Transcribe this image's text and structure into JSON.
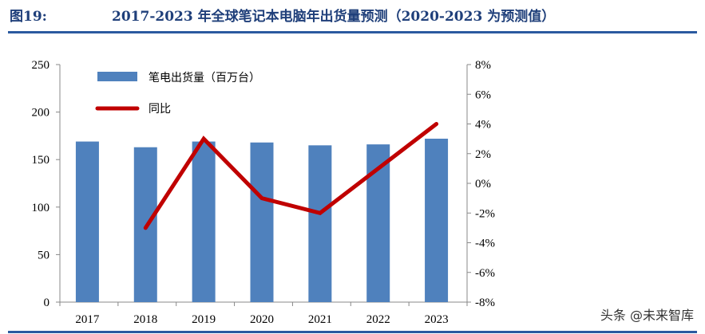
{
  "header": {
    "figure_label": "图19:",
    "title": "2017-2023 年全球笔记本电脑年出货量预测（2020-2023 为预测值）"
  },
  "watermark": "头条 @未来智库",
  "colors": {
    "bar": "#4f81bd",
    "line": "#c00000",
    "title": "#1f3f7a"
  },
  "chart_data": {
    "type": "bar+line",
    "categories": [
      "2017",
      "2018",
      "2019",
      "2020",
      "2021",
      "2022",
      "2023"
    ],
    "series": [
      {
        "name": "笔电出货量（百万台）",
        "type": "bar",
        "axis": "left",
        "values": [
          169,
          163,
          169,
          168,
          165,
          166,
          172
        ]
      },
      {
        "name": "同比",
        "type": "line",
        "axis": "right",
        "values": [
          null,
          -3,
          3,
          -1,
          -2,
          1,
          4
        ]
      }
    ],
    "yleft": {
      "lim": [
        0,
        250
      ],
      "ticks": [
        "0",
        "50",
        "100",
        "150",
        "200",
        "250"
      ]
    },
    "yright": {
      "lim": [
        -8,
        8
      ],
      "ticks": [
        "-8%",
        "-6%",
        "-4%",
        "-2%",
        "0%",
        "2%",
        "4%",
        "6%",
        "8%"
      ]
    },
    "legend": "top-left",
    "grid": false
  }
}
